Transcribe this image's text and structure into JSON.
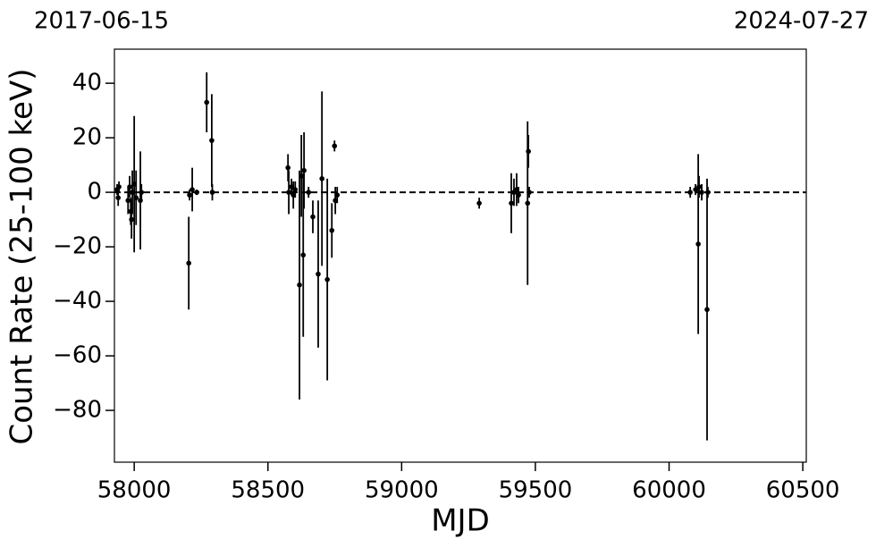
{
  "chart_data": {
    "type": "errorbar-scatter",
    "annotations": [
      "2017-06-15",
      "2024-07-27"
    ],
    "x_label": "MJD",
    "y_label": "Count Rate (25-100 keV)",
    "color": "#000000",
    "hline": 0,
    "x": [
      57936,
      57940,
      57943,
      57977,
      57983,
      57987,
      57990,
      57993,
      58000,
      58007,
      58023,
      58027,
      58204,
      58207,
      58217,
      58234,
      58271,
      58290,
      58292,
      58575,
      58578,
      58588,
      58595,
      58602,
      58618,
      58625,
      58632,
      58635,
      58652,
      58668,
      58688,
      58702,
      58722,
      58739,
      58749,
      58752,
      58759,
      59290,
      59410,
      59420,
      59430,
      59437,
      59471,
      59474,
      59477,
      60079,
      60099,
      60109,
      60112,
      60122,
      60142,
      60145
    ],
    "values": [
      1,
      -2,
      2,
      -3,
      2,
      -7,
      -10,
      0,
      3,
      -2,
      -3,
      0,
      -26,
      -1,
      1,
      0,
      33,
      19,
      0,
      9,
      0,
      2,
      -1,
      1,
      -34,
      6,
      -23,
      8,
      0,
      -9,
      -30,
      5,
      -32,
      -14,
      17,
      -3,
      -1,
      -4,
      -4,
      0,
      1,
      -1,
      -4,
      15,
      0,
      0,
      1,
      -19,
      2,
      0,
      -43,
      0
    ],
    "errors": [
      2,
      3,
      2,
      5,
      4,
      5,
      7,
      8,
      25,
      10,
      18,
      3,
      17,
      2,
      8,
      1,
      11,
      17,
      3,
      5,
      8,
      3,
      5,
      3,
      42,
      15,
      30,
      14,
      2,
      6,
      27,
      32,
      37,
      10,
      2,
      5,
      3,
      2,
      11,
      5,
      6,
      3,
      30,
      6,
      2,
      2,
      2,
      33,
      4,
      3,
      48,
      2
    ],
    "xlim": [
      57926,
      60513
    ],
    "ylim": [
      -99,
      52.5
    ],
    "xticks": [
      58000,
      58500,
      59000,
      59500,
      60000,
      60500
    ],
    "yticks": [
      {
        "value": -80,
        "label": "−80"
      },
      {
        "value": -60,
        "label": "−60"
      },
      {
        "value": -40,
        "label": "−40"
      },
      {
        "value": -20,
        "label": "−20"
      },
      0,
      20,
      40
    ]
  }
}
